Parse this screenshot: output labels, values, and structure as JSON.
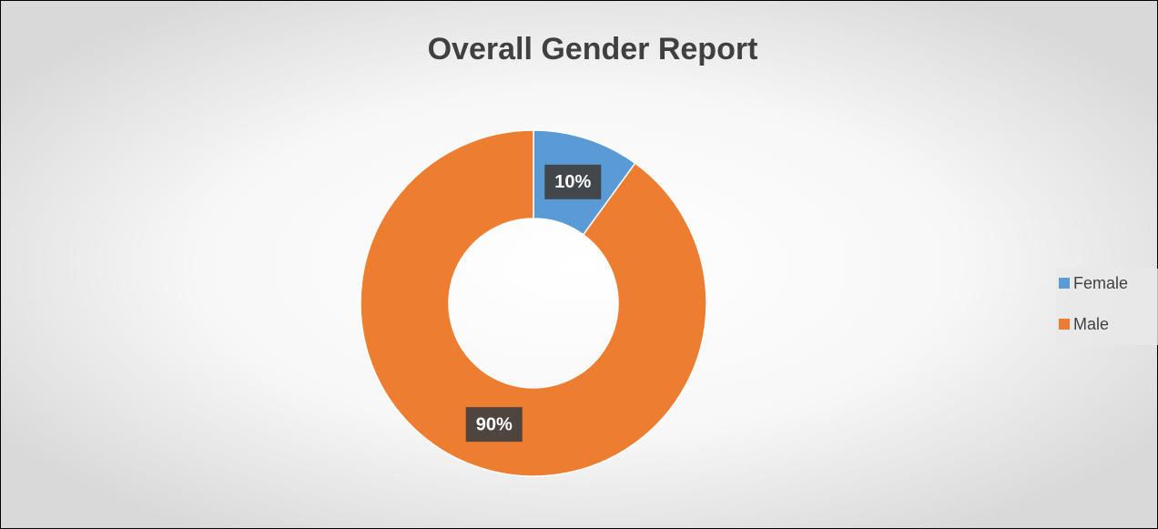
{
  "chart_data": {
    "type": "donut",
    "title": "Overall Gender Report",
    "categories": [
      "Female",
      "Male"
    ],
    "values": [
      10,
      90
    ],
    "value_labels": [
      "10%",
      "90%"
    ],
    "colors": [
      "#5b9bd5",
      "#ed7d31"
    ],
    "legend": "right"
  }
}
